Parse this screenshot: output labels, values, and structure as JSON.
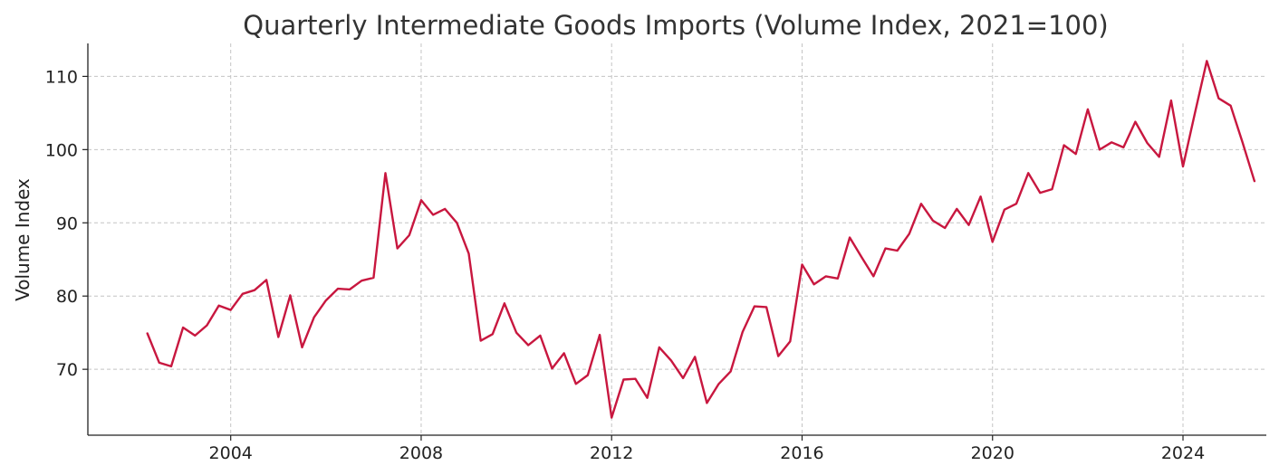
{
  "chart_data": {
    "type": "line",
    "title": "Quarterly Intermediate Goods Imports (Volume Index, 2021=100)",
    "xlabel": "",
    "ylabel": "Volume Index",
    "x_ticks": [
      "2004",
      "2008",
      "2012",
      "2016",
      "2020",
      "2024"
    ],
    "y_ticks": [
      70,
      80,
      90,
      100,
      110
    ],
    "x_range": [
      "2001-Q1",
      "2025-Q4"
    ],
    "ylim": [
      61,
      114.5
    ],
    "grid": true,
    "line_color": "#c8173f",
    "series": [
      {
        "x": [
          "2002-Q2",
          "2002-Q3",
          "2002-Q4",
          "2003-Q1",
          "2003-Q2",
          "2003-Q3",
          "2003-Q4",
          "2004-Q1",
          "2004-Q2",
          "2004-Q3",
          "2004-Q4",
          "2005-Q1",
          "2005-Q2",
          "2005-Q3",
          "2005-Q4",
          "2006-Q1",
          "2006-Q2",
          "2006-Q3",
          "2006-Q4",
          "2007-Q1",
          "2007-Q2",
          "2007-Q3",
          "2007-Q4",
          "2008-Q1",
          "2008-Q2",
          "2008-Q3",
          "2008-Q4",
          "2009-Q1",
          "2009-Q2",
          "2009-Q3",
          "2009-Q4",
          "2010-Q1",
          "2010-Q2",
          "2010-Q3",
          "2010-Q4",
          "2011-Q1",
          "2011-Q2",
          "2011-Q3",
          "2011-Q4",
          "2012-Q1",
          "2012-Q2",
          "2012-Q3",
          "2012-Q4",
          "2013-Q1",
          "2013-Q2",
          "2013-Q3",
          "2013-Q4",
          "2014-Q1",
          "2014-Q2",
          "2014-Q3",
          "2014-Q4",
          "2015-Q1",
          "2015-Q2",
          "2015-Q3",
          "2015-Q4",
          "2016-Q1",
          "2016-Q2",
          "2016-Q3",
          "2016-Q4",
          "2017-Q1",
          "2017-Q2",
          "2017-Q3",
          "2017-Q4",
          "2018-Q1",
          "2018-Q2",
          "2018-Q3",
          "2018-Q4",
          "2019-Q1",
          "2019-Q2",
          "2019-Q3",
          "2019-Q4",
          "2020-Q1",
          "2020-Q2",
          "2020-Q3",
          "2020-Q4",
          "2021-Q1",
          "2021-Q2",
          "2021-Q3",
          "2021-Q4",
          "2022-Q1",
          "2022-Q2",
          "2022-Q3",
          "2022-Q4",
          "2023-Q1",
          "2023-Q2",
          "2023-Q3",
          "2023-Q4",
          "2024-Q1",
          "2024-Q2",
          "2024-Q3",
          "2024-Q4",
          "2025-Q1",
          "2025-Q2",
          "2025-Q3"
        ],
        "values": [
          74.9,
          70.9,
          70.4,
          75.7,
          74.6,
          76.0,
          78.7,
          78.1,
          80.3,
          80.8,
          82.2,
          74.4,
          80.1,
          73.0,
          77.1,
          79.4,
          81.0,
          80.9,
          82.1,
          82.5,
          96.8,
          86.5,
          88.3,
          93.1,
          91.1,
          91.9,
          90.0,
          85.8,
          73.9,
          74.8,
          79.0,
          75.0,
          73.3,
          74.6,
          70.1,
          72.2,
          68.0,
          69.2,
          74.7,
          63.4,
          68.6,
          68.7,
          66.1,
          73.0,
          71.2,
          68.8,
          71.7,
          65.4,
          68.0,
          69.7,
          75.1,
          78.6,
          78.5,
          71.8,
          73.8,
          84.3,
          81.6,
          82.7,
          82.4,
          88.0,
          85.3,
          82.7,
          86.5,
          86.2,
          88.5,
          92.6,
          90.3,
          89.3,
          91.9,
          89.7,
          93.6,
          87.4,
          91.8,
          92.6,
          96.8,
          94.1,
          94.6,
          100.6,
          99.4,
          105.5,
          100.0,
          101.0,
          100.3,
          103.8,
          100.9,
          99.0,
          106.7,
          97.7,
          105.0,
          112.1,
          107.0,
          106.0,
          101.0,
          95.7
        ]
      }
    ]
  }
}
